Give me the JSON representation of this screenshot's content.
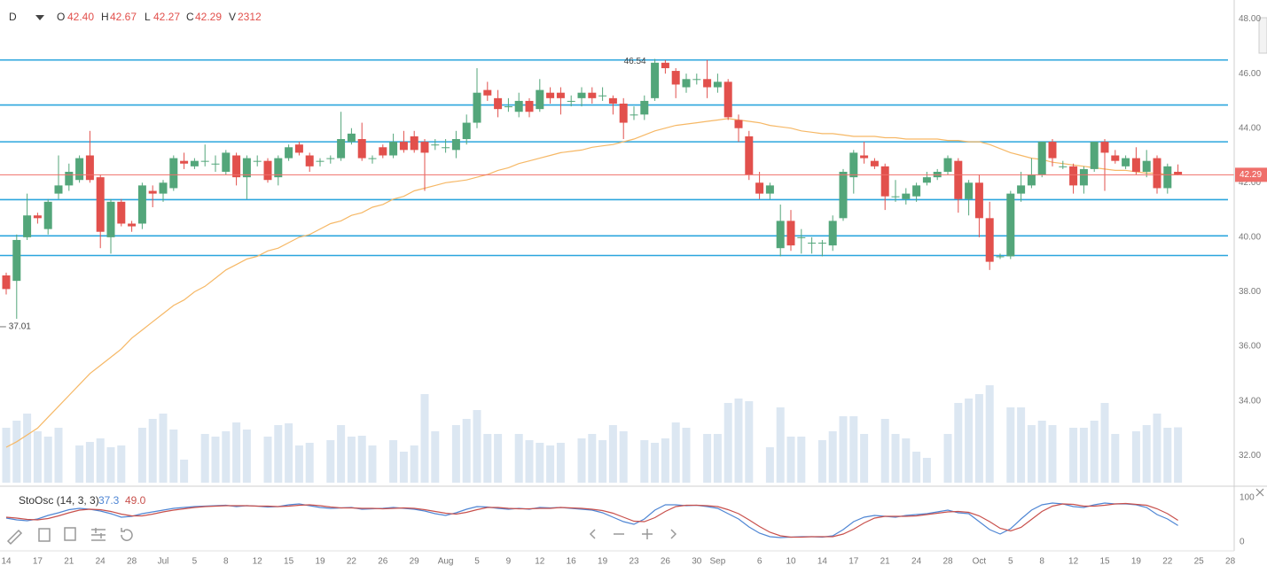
{
  "header": {
    "interval": "D",
    "items": [
      {
        "key": "O",
        "value": "42.40"
      },
      {
        "key": "H",
        "value": "42.67"
      },
      {
        "key": "L",
        "value": "42.27"
      },
      {
        "key": "C",
        "value": "42.29"
      },
      {
        "key": "V",
        "value": "2312"
      }
    ]
  },
  "chart_data": [
    {
      "type": "candlestick",
      "categories": [
        "14",
        null,
        null,
        "17",
        null,
        null,
        "21",
        null,
        null,
        "24",
        null,
        null,
        "28",
        null,
        null,
        "Jul",
        null,
        null,
        "5",
        null,
        null,
        "8",
        null,
        null,
        "12",
        null,
        null,
        "15",
        null,
        null,
        "19",
        null,
        null,
        "22",
        null,
        null,
        "26",
        null,
        null,
        "29",
        null,
        null,
        "Aug",
        null,
        null,
        "5",
        null,
        null,
        "9",
        null,
        null,
        "12",
        null,
        null,
        "16",
        null,
        null,
        "19",
        null,
        null,
        "23",
        null,
        null,
        "26",
        null,
        null,
        "30",
        null,
        "Sep",
        null,
        null,
        null,
        "6",
        null,
        null,
        "10",
        null,
        null,
        "14",
        null,
        null,
        "17",
        null,
        null,
        "21",
        null,
        null,
        "24",
        null,
        null,
        "28",
        null,
        null,
        "Oct",
        null,
        null,
        "5",
        null,
        null,
        "8",
        null,
        null,
        "12",
        null,
        null,
        "15",
        null,
        null,
        "19",
        null,
        null,
        "22",
        null,
        null,
        "25",
        null,
        null,
        "28"
      ],
      "open": [
        38.6,
        38.4,
        40.0,
        40.8,
        40.3,
        41.6,
        41.9,
        42.1,
        43.0,
        42.2,
        40.0,
        41.3,
        40.5,
        40.5,
        41.7,
        41.6,
        41.8,
        42.8,
        42.6,
        42.8,
        42.7,
        42.4,
        43.0,
        42.2,
        42.8,
        42.8,
        42.2,
        42.9,
        43.4,
        43.0,
        42.8,
        42.9,
        42.9,
        43.5,
        43.6,
        42.9,
        43.3,
        43.0,
        43.5,
        43.7,
        43.5,
        43.4,
        43.3,
        43.2,
        43.6,
        44.2,
        45.4,
        45.1,
        44.8,
        44.6,
        45.0,
        44.7,
        45.3,
        45.3,
        45.0,
        45.1,
        45.3,
        45.2,
        45.1,
        44.9,
        44.5,
        44.5,
        45.1,
        46.4,
        46.1,
        45.5,
        45.8,
        45.8,
        45.5,
        45.7,
        44.3,
        43.7,
        42.0,
        41.6,
        39.6,
        40.6,
        40.0,
        39.8,
        39.8,
        39.7,
        40.7,
        42.2,
        43.0,
        42.8,
        42.6,
        41.5,
        41.4,
        41.5,
        42.0,
        42.2,
        42.4,
        42.8,
        41.4,
        42.0,
        40.7,
        39.3,
        39.3,
        41.6,
        41.9,
        42.3,
        43.5,
        42.6,
        42.6,
        41.9,
        42.5,
        43.5,
        43.0,
        42.6,
        42.9,
        42.4,
        42.9,
        41.8,
        42.4,
        null,
        null,
        null,
        null,
        null
      ],
      "high": [
        38.7,
        40.1,
        41.6,
        40.9,
        41.4,
        43.0,
        42.7,
        43.0,
        43.9,
        42.3,
        41.4,
        41.4,
        40.6,
        42.0,
        41.9,
        42.1,
        43.0,
        43.1,
        42.9,
        43.4,
        43.0,
        43.2,
        43.1,
        43.0,
        43.0,
        42.9,
        43.0,
        43.4,
        43.5,
        43.1,
        42.9,
        43.0,
        44.6,
        44.0,
        44.2,
        43.0,
        43.4,
        43.8,
        43.9,
        43.9,
        43.6,
        43.6,
        43.6,
        43.9,
        44.5,
        46.2,
        45.7,
        45.4,
        45.1,
        45.3,
        45.1,
        45.8,
        45.5,
        45.5,
        45.2,
        45.5,
        45.5,
        45.5,
        45.2,
        45.1,
        44.8,
        45.2,
        46.54,
        46.5,
        46.2,
        46.0,
        46.0,
        46.5,
        46.0,
        45.8,
        44.5,
        43.9,
        42.4,
        42.0,
        41.2,
        41.0,
        40.3,
        40.0,
        39.9,
        40.8,
        42.5,
        43.2,
        43.5,
        42.9,
        42.7,
        42.1,
        41.8,
        42.0,
        42.4,
        42.5,
        43.0,
        42.9,
        42.1,
        42.3,
        41.3,
        39.4,
        41.7,
        42.4,
        42.9,
        43.5,
        43.6,
        42.8,
        42.7,
        42.6,
        43.5,
        43.6,
        43.2,
        43.0,
        43.3,
        43.2,
        43.0,
        42.7,
        42.67,
        null,
        null,
        null,
        null,
        null
      ],
      "low": [
        37.9,
        37.01,
        39.9,
        40.5,
        40.1,
        41.4,
        41.7,
        42.0,
        42.0,
        39.6,
        39.4,
        40.4,
        40.2,
        40.3,
        41.1,
        41.3,
        41.7,
        42.5,
        42.5,
        42.6,
        42.4,
        42.3,
        41.9,
        41.4,
        42.6,
        42.0,
        41.9,
        42.8,
        43.0,
        42.4,
        42.6,
        42.7,
        42.8,
        43.4,
        42.8,
        42.7,
        42.9,
        42.9,
        43.1,
        43.1,
        41.7,
        43.2,
        43.1,
        42.9,
        43.4,
        44.0,
        45.0,
        44.4,
        44.6,
        44.4,
        44.4,
        44.6,
        44.9,
        44.5,
        44.8,
        44.8,
        44.9,
        45.0,
        44.5,
        43.6,
        44.3,
        44.3,
        45.0,
        46.0,
        45.1,
        45.3,
        45.6,
        45.1,
        45.3,
        44.3,
        43.5,
        42.1,
        41.4,
        41.4,
        39.3,
        39.5,
        39.4,
        39.4,
        39.3,
        39.5,
        40.6,
        41.6,
        42.7,
        42.5,
        41.0,
        41.3,
        41.2,
        41.3,
        41.9,
        42.1,
        42.3,
        40.9,
        40.8,
        40.0,
        38.8,
        39.2,
        39.2,
        41.3,
        41.8,
        42.2,
        42.6,
        42.5,
        41.6,
        41.6,
        42.4,
        41.7,
        42.7,
        42.5,
        42.3,
        42.2,
        41.6,
        41.6,
        42.27,
        null,
        null,
        null,
        null,
        null
      ],
      "close": [
        38.1,
        39.9,
        40.8,
        40.7,
        41.3,
        41.9,
        42.4,
        42.9,
        42.1,
        40.2,
        41.3,
        40.5,
        40.4,
        41.9,
        41.6,
        42.0,
        42.9,
        42.7,
        42.8,
        42.8,
        42.7,
        43.1,
        42.2,
        42.9,
        42.8,
        42.1,
        42.9,
        43.3,
        43.1,
        42.6,
        42.8,
        42.9,
        43.6,
        43.8,
        42.9,
        42.9,
        43.0,
        43.5,
        43.2,
        43.2,
        43.1,
        43.4,
        43.3,
        43.6,
        44.2,
        45.3,
        45.2,
        44.7,
        44.8,
        45.0,
        44.6,
        45.4,
        45.1,
        45.1,
        45.0,
        45.3,
        45.1,
        45.2,
        44.9,
        44.2,
        44.5,
        45.0,
        46.4,
        46.2,
        45.6,
        45.8,
        45.8,
        45.5,
        45.7,
        44.4,
        44.0,
        42.3,
        41.6,
        41.9,
        40.6,
        39.7,
        40.0,
        39.8,
        39.8,
        40.6,
        42.4,
        43.1,
        42.9,
        42.6,
        41.5,
        41.5,
        41.6,
        41.9,
        42.2,
        42.4,
        42.9,
        41.4,
        42.0,
        40.7,
        39.1,
        39.3,
        41.6,
        41.9,
        42.3,
        43.5,
        42.9,
        42.6,
        41.9,
        42.5,
        43.5,
        43.1,
        42.8,
        42.9,
        42.4,
        42.8,
        41.8,
        42.6,
        42.29,
        null,
        null,
        null,
        null,
        null
      ],
      "volume": [
        2294,
        2590,
        2886,
        2146,
        1924,
        2294,
        null,
        1554,
        1702,
        1850,
        1480,
        1554,
        null,
        2294,
        2664,
        2886,
        2220,
        962,
        null,
        2035,
        1924,
        2146,
        2516,
        2220,
        null,
        1924,
        2405,
        2479,
        1554,
        1665,
        null,
        1776,
        2405,
        1924,
        1961,
        1554,
        null,
        1776,
        1295,
        1554,
        3700,
        2146,
        null,
        2405,
        2664,
        3034,
        2035,
        2035,
        null,
        2035,
        1776,
        1665,
        1554,
        1665,
        null,
        1850,
        2035,
        1776,
        2405,
        2146,
        null,
        1776,
        1665,
        1850,
        2516,
        2294,
        null,
        2035,
        2035,
        3330,
        3515,
        3404,
        null,
        1480,
        3145,
        1924,
        1924,
        null,
        1776,
        2146,
        2775,
        2775,
        2035,
        null,
        2664,
        2035,
        1850,
        1295,
        1036,
        null,
        2035,
        3330,
        3515,
        3700,
        4070,
        null,
        3145,
        3145,
        2405,
        2590,
        2405,
        null,
        2294,
        2294,
        2590,
        3330,
        2035,
        null,
        2146,
        2405,
        2886,
        2294,
        2312,
        null,
        null,
        null,
        null,
        null
      ],
      "up_color": "#53a67a",
      "down_color": "#e2504c",
      "volume_color": "#dce7f2",
      "ylim": [
        31.0,
        48.7
      ],
      "yticks": [
        {
          "value": 32,
          "label": "32.00"
        },
        {
          "value": 34,
          "label": "34.00"
        },
        {
          "value": 36,
          "label": "36.00"
        },
        {
          "value": 38,
          "label": "38.00"
        },
        {
          "value": 40,
          "label": "40.00"
        },
        {
          "value": 42,
          "label": "42.00"
        },
        {
          "value": 44,
          "label": "44.00"
        },
        {
          "value": 46,
          "label": "46.00"
        },
        {
          "value": 48,
          "label": "48.00"
        }
      ],
      "grid": true,
      "hlines": [
        46.5,
        44.85,
        43.5,
        41.38,
        40.05,
        39.33
      ],
      "hline_color": "#2ba6de",
      "last_price": 42.29,
      "last_price_color": "#ef6f6a",
      "min_marker": 37.01,
      "max_marker": 46.54,
      "overlays": [
        {
          "type": "line",
          "color": "#f6b866",
          "values": [
            32.3,
            32.5,
            32.75,
            33.0,
            33.4,
            33.8,
            34.2,
            34.6,
            35.0,
            35.3,
            35.6,
            35.9,
            36.3,
            36.6,
            36.9,
            37.2,
            37.5,
            37.7,
            38.0,
            38.2,
            38.5,
            38.8,
            39.0,
            39.2,
            39.3,
            39.5,
            39.6,
            39.8,
            40.0,
            40.1,
            40.3,
            40.5,
            40.6,
            40.8,
            40.9,
            41.1,
            41.2,
            41.4,
            41.5,
            41.7,
            41.8,
            41.9,
            42.0,
            42.05,
            42.1,
            42.2,
            42.3,
            42.45,
            42.55,
            42.7,
            42.8,
            42.9,
            43.0,
            43.1,
            43.15,
            43.2,
            43.3,
            43.35,
            43.4,
            43.5,
            43.6,
            43.75,
            43.9,
            44.0,
            44.1,
            44.15,
            44.2,
            44.25,
            44.3,
            44.35,
            44.3,
            44.25,
            44.2,
            44.1,
            44.05,
            44.0,
            43.9,
            43.85,
            43.8,
            43.8,
            43.75,
            43.7,
            43.7,
            43.7,
            43.65,
            43.65,
            43.6,
            43.6,
            43.6,
            43.6,
            43.55,
            43.55,
            43.5,
            43.5,
            43.4,
            43.25,
            43.1,
            43.0,
            42.9,
            42.85,
            42.75,
            42.7,
            42.65,
            42.6,
            42.55,
            42.5,
            42.45,
            42.45,
            42.4,
            42.35,
            42.35,
            42.3,
            42.3,
            null,
            null,
            null,
            null,
            null
          ]
        }
      ]
    },
    {
      "type": "line",
      "title": "StoOsc (14, 3, 3)",
      "ylim": [
        -16,
        118
      ],
      "yticks": [
        0,
        100
      ],
      "levels": [
        20,
        50,
        80
      ],
      "level_color": "#888888",
      "series": [
        {
          "color": "#4f86d4",
          "last_label": "37.3",
          "values": [
            54,
            50,
            48,
            52,
            60,
            66,
            73,
            76,
            74,
            70,
            64,
            56,
            58,
            64,
            68,
            72,
            76,
            78,
            80,
            81,
            82,
            83,
            80,
            82,
            81,
            79,
            80,
            84,
            86,
            82,
            78,
            76,
            77,
            78,
            74,
            75,
            76,
            78,
            76,
            74,
            70,
            64,
            60,
            66,
            74,
            80,
            79,
            76,
            74,
            76,
            74,
            78,
            77,
            78,
            76,
            74,
            72,
            66,
            56,
            46,
            40,
            52,
            72,
            84,
            84,
            82,
            83,
            80,
            76,
            64,
            52,
            34,
            20,
            12,
            10,
            11,
            12,
            12,
            11,
            14,
            28,
            46,
            56,
            60,
            58,
            56,
            60,
            62,
            64,
            68,
            72,
            66,
            64,
            46,
            28,
            18,
            30,
            52,
            72,
            84,
            88,
            86,
            80,
            78,
            84,
            88,
            86,
            86,
            84,
            78,
            62,
            52,
            37.3,
            null,
            null,
            null,
            null,
            null
          ]
        },
        {
          "color": "#c8504c",
          "last_label": "49.0",
          "values": [
            56,
            54,
            51,
            50,
            53,
            59,
            66,
            72,
            74,
            73,
            69,
            63,
            59,
            59,
            63,
            68,
            72,
            75,
            78,
            80,
            81,
            82,
            82,
            82,
            81,
            81,
            80,
            81,
            83,
            84,
            82,
            79,
            77,
            77,
            76,
            76,
            75,
            76,
            77,
            76,
            73,
            69,
            65,
            63,
            67,
            73,
            78,
            78,
            76,
            75,
            75,
            76,
            76,
            78,
            77,
            76,
            74,
            71,
            65,
            56,
            47,
            46,
            55,
            69,
            80,
            83,
            83,
            82,
            80,
            73,
            64,
            50,
            35,
            22,
            14,
            11,
            11,
            12,
            12,
            12,
            18,
            29,
            43,
            54,
            58,
            58,
            58,
            59,
            62,
            65,
            68,
            69,
            67,
            59,
            46,
            31,
            25,
            33,
            51,
            69,
            81,
            86,
            85,
            81,
            81,
            83,
            86,
            87,
            85,
            83,
            75,
            64,
            49.0,
            null,
            null,
            null,
            null,
            null
          ]
        }
      ]
    }
  ]
}
